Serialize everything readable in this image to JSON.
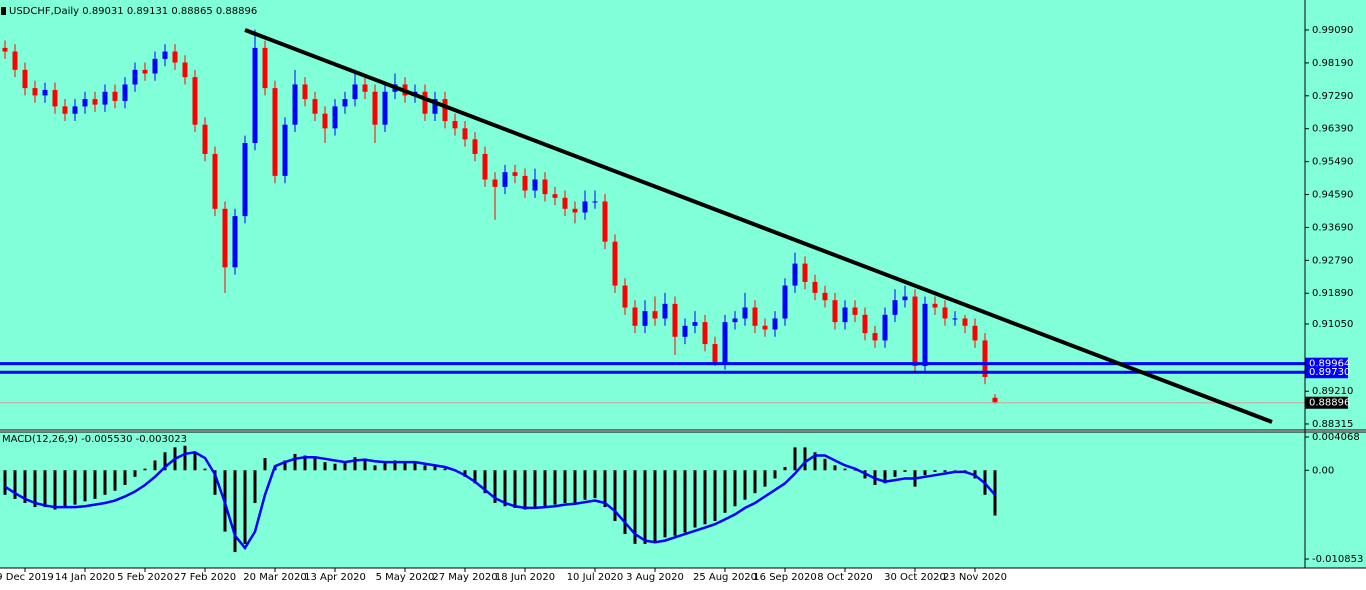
{
  "chart_data": [
    {
      "type": "candlestick",
      "title": "USDCHF,Daily  0.89031 0.89131 0.88865 0.88896",
      "background": "#80ffd8",
      "up_color": "#0000ff",
      "down_color": "#ff0000",
      "open": [
        0.986,
        0.985,
        0.98,
        0.975,
        0.973,
        0.9745,
        0.97,
        0.968,
        0.97,
        0.972,
        0.9705,
        0.974,
        0.9715,
        0.976,
        0.98,
        0.979,
        0.983,
        0.985,
        0.982,
        0.978,
        0.965,
        0.957,
        0.942,
        0.926,
        0.94,
        0.96,
        0.986,
        0.975,
        0.951,
        0.965,
        0.976,
        0.972,
        0.968,
        0.964,
        0.97,
        0.972,
        0.976,
        0.974,
        0.965,
        0.974,
        0.976,
        0.973,
        0.974,
        0.968,
        0.972,
        0.966,
        0.964,
        0.961,
        0.957,
        0.95,
        0.948,
        0.952,
        0.951,
        0.947,
        0.95,
        0.946,
        0.945,
        0.942,
        0.941,
        0.944,
        0.944,
        0.933,
        0.921,
        0.915,
        0.91,
        0.914,
        0.912,
        0.916,
        0.907,
        0.91,
        0.911,
        0.905,
        0.9,
        0.911,
        0.912,
        0.915,
        0.91,
        0.909,
        0.912,
        0.921,
        0.927,
        0.922,
        0.919,
        0.917,
        0.911,
        0.915,
        0.913,
        0.908,
        0.906,
        0.913,
        0.917,
        0.918,
        0.899,
        0.916,
        0.915,
        0.912,
        0.912,
        0.91,
        0.906,
        0.89031
      ],
      "high": [
        0.988,
        0.987,
        0.982,
        0.977,
        0.9765,
        0.9765,
        0.972,
        0.972,
        0.974,
        0.974,
        0.976,
        0.976,
        0.978,
        0.982,
        0.982,
        0.985,
        0.987,
        0.987,
        0.984,
        0.98,
        0.967,
        0.959,
        0.944,
        0.942,
        0.962,
        0.991,
        0.988,
        0.977,
        0.967,
        0.98,
        0.978,
        0.974,
        0.97,
        0.972,
        0.974,
        0.98,
        0.978,
        0.976,
        0.976,
        0.979,
        0.978,
        0.976,
        0.976,
        0.974,
        0.974,
        0.968,
        0.966,
        0.963,
        0.959,
        0.952,
        0.954,
        0.954,
        0.953,
        0.953,
        0.952,
        0.948,
        0.947,
        0.944,
        0.947,
        0.947,
        0.946,
        0.935,
        0.923,
        0.917,
        0.917,
        0.918,
        0.919,
        0.918,
        0.912,
        0.914,
        0.913,
        0.907,
        0.913,
        0.914,
        0.919,
        0.917,
        0.912,
        0.914,
        0.923,
        0.93,
        0.929,
        0.924,
        0.921,
        0.919,
        0.917,
        0.917,
        0.915,
        0.91,
        0.915,
        0.92,
        0.921,
        0.92,
        0.918,
        0.918,
        0.917,
        0.914,
        0.913,
        0.912,
        0.908,
        0.89131
      ],
      "low": [
        0.983,
        0.978,
        0.973,
        0.971,
        0.971,
        0.968,
        0.966,
        0.966,
        0.968,
        0.9685,
        0.9685,
        0.9695,
        0.9695,
        0.974,
        0.977,
        0.977,
        0.981,
        0.98,
        0.976,
        0.963,
        0.955,
        0.94,
        0.919,
        0.924,
        0.938,
        0.958,
        0.973,
        0.949,
        0.949,
        0.963,
        0.97,
        0.966,
        0.96,
        0.962,
        0.968,
        0.97,
        0.972,
        0.96,
        0.963,
        0.972,
        0.971,
        0.971,
        0.966,
        0.966,
        0.964,
        0.962,
        0.959,
        0.955,
        0.948,
        0.939,
        0.946,
        0.949,
        0.945,
        0.945,
        0.944,
        0.943,
        0.94,
        0.938,
        0.939,
        0.942,
        0.931,
        0.919,
        0.913,
        0.908,
        0.908,
        0.91,
        0.91,
        0.902,
        0.905,
        0.908,
        0.903,
        0.899,
        0.898,
        0.909,
        0.91,
        0.908,
        0.907,
        0.907,
        0.91,
        0.919,
        0.92,
        0.917,
        0.915,
        0.909,
        0.909,
        0.911,
        0.906,
        0.904,
        0.904,
        0.911,
        0.915,
        0.897,
        0.897,
        0.913,
        0.91,
        0.91,
        0.908,
        0.904,
        0.894,
        0.88865
      ],
      "close": [
        0.985,
        0.98,
        0.975,
        0.973,
        0.9745,
        0.97,
        0.968,
        0.97,
        0.972,
        0.9705,
        0.974,
        0.9715,
        0.976,
        0.98,
        0.979,
        0.983,
        0.985,
        0.982,
        0.978,
        0.965,
        0.957,
        0.942,
        0.926,
        0.94,
        0.96,
        0.986,
        0.975,
        0.951,
        0.965,
        0.976,
        0.972,
        0.968,
        0.964,
        0.97,
        0.972,
        0.976,
        0.974,
        0.965,
        0.974,
        0.976,
        0.973,
        0.974,
        0.968,
        0.972,
        0.966,
        0.964,
        0.961,
        0.957,
        0.95,
        0.948,
        0.952,
        0.951,
        0.947,
        0.95,
        0.946,
        0.945,
        0.942,
        0.941,
        0.944,
        0.944,
        0.933,
        0.921,
        0.915,
        0.91,
        0.914,
        0.912,
        0.916,
        0.907,
        0.91,
        0.911,
        0.905,
        0.9,
        0.911,
        0.912,
        0.915,
        0.91,
        0.909,
        0.912,
        0.921,
        0.927,
        0.922,
        0.919,
        0.917,
        0.911,
        0.915,
        0.913,
        0.908,
        0.906,
        0.913,
        0.917,
        0.918,
        0.899,
        0.916,
        0.915,
        0.912,
        0.912,
        0.91,
        0.906,
        0.896,
        0.88896
      ],
      "ylim": [
        0.8815,
        0.9991
      ],
      "yticks": [
        {
          "value": 0.9909,
          "label": "0.99090"
        },
        {
          "value": 0.9819,
          "label": "0.98190"
        },
        {
          "value": 0.9729,
          "label": "0.97290"
        },
        {
          "value": 0.9639,
          "label": "0.96390"
        },
        {
          "value": 0.9549,
          "label": "0.95490"
        },
        {
          "value": 0.9459,
          "label": "0.94590"
        },
        {
          "value": 0.9369,
          "label": "0.93690"
        },
        {
          "value": 0.9279,
          "label": "0.92790"
        },
        {
          "value": 0.9189,
          "label": "0.91890"
        },
        {
          "value": 0.9105,
          "label": "0.91050"
        },
        {
          "value": 0.8921,
          "label": "0.89210"
        },
        {
          "value": 0.88315,
          "label": "0.88315"
        }
      ],
      "xticks": [
        {
          "value": 2,
          "label": "9 Dec 2019"
        },
        {
          "value": 8,
          "label": "14 Jan 2020"
        },
        {
          "value": 14,
          "label": "5 Feb 2020"
        },
        {
          "value": 20,
          "label": "27 Feb 2020"
        },
        {
          "value": 27,
          "label": "20 Mar 2020"
        },
        {
          "value": 33,
          "label": "13 Apr 2020"
        },
        {
          "value": 40,
          "label": "5 May 2020"
        },
        {
          "value": 46,
          "label": "27 May 2020"
        },
        {
          "value": 52,
          "label": "18 Jun 2020"
        },
        {
          "value": 59,
          "label": "10 Jul 2020"
        },
        {
          "value": 65,
          "label": "3 Aug 2020"
        },
        {
          "value": 72,
          "label": "25 Aug 2020"
        },
        {
          "value": 78,
          "label": "16 Sep 2020"
        },
        {
          "value": 84,
          "label": "8 Oct 2020"
        },
        {
          "value": 91,
          "label": "30 Oct 2020"
        },
        {
          "value": 97,
          "label": "23 Nov 2020"
        }
      ],
      "trendline": {
        "x": [
          24,
          126.7
        ],
        "y": [
          0.9909,
          0.8837
        ],
        "color": "#000000"
      },
      "hlines": [
        {
          "value": 0.89964,
          "label": "0.89964"
        },
        {
          "value": 0.8973,
          "label": "0.89730"
        }
      ],
      "hline_color": "#0000ff"
    },
    {
      "type": "macd",
      "title": "MACD(12,26,9) -0.005530 -0.003023",
      "histogram": [
        -0.003,
        -0.0035,
        -0.004,
        -0.0045,
        -0.0045,
        -0.0048,
        -0.0046,
        -0.0042,
        -0.0038,
        -0.0035,
        -0.003,
        -0.0025,
        -0.0018,
        -0.0008,
        0.0002,
        0.0012,
        0.0022,
        0.0028,
        0.003,
        0.0022,
        0.0002,
        -0.003,
        -0.0075,
        -0.01,
        -0.009,
        -0.004,
        0.0015,
        0.0005,
        0.0012,
        0.002,
        0.0018,
        0.0015,
        0.001,
        0.0008,
        0.001,
        0.0016,
        0.0014,
        0.0006,
        0.001,
        0.0012,
        0.001,
        0.001,
        0.0006,
        0.0006,
        0.0002,
        0.0,
        -0.0008,
        -0.0016,
        -0.0028,
        -0.004,
        -0.0044,
        -0.0046,
        -0.0048,
        -0.0046,
        -0.0044,
        -0.0042,
        -0.004,
        -0.004,
        -0.0036,
        -0.0034,
        -0.0045,
        -0.0062,
        -0.0078,
        -0.009,
        -0.009,
        -0.0088,
        -0.0082,
        -0.008,
        -0.0076,
        -0.007,
        -0.0066,
        -0.0062,
        -0.0052,
        -0.0044,
        -0.0036,
        -0.0028,
        -0.002,
        -0.001,
        0.0004,
        0.0028,
        0.0028,
        0.0022,
        0.0014,
        0.0006,
        0.0002,
        0.0,
        -0.001,
        -0.0018,
        -0.0016,
        -0.0008,
        -0.0002,
        -0.002,
        -0.0006,
        -0.0002,
        -0.0002,
        0.0,
        -0.0002,
        -0.001,
        -0.003,
        -0.00553
      ],
      "signal": [
        -0.002,
        -0.0028,
        -0.0035,
        -0.004,
        -0.0043,
        -0.0045,
        -0.0045,
        -0.0045,
        -0.0044,
        -0.0042,
        -0.004,
        -0.0037,
        -0.0032,
        -0.0026,
        -0.0018,
        -0.0008,
        0.0004,
        0.0014,
        0.002,
        0.0022,
        0.0015,
        -0.0005,
        -0.004,
        -0.008,
        -0.0095,
        -0.0075,
        -0.003,
        0.0005,
        0.001,
        0.0014,
        0.0016,
        0.0016,
        0.0014,
        0.0012,
        0.001,
        0.0012,
        0.0013,
        0.0011,
        0.001,
        0.001,
        0.001,
        0.001,
        0.0008,
        0.0006,
        0.0004,
        0.0,
        -0.0006,
        -0.0014,
        -0.0024,
        -0.0034,
        -0.004,
        -0.0044,
        -0.0046,
        -0.0046,
        -0.0045,
        -0.0044,
        -0.0042,
        -0.0041,
        -0.0039,
        -0.0037,
        -0.004,
        -0.005,
        -0.0064,
        -0.0078,
        -0.0086,
        -0.0088,
        -0.0086,
        -0.0082,
        -0.0078,
        -0.0074,
        -0.007,
        -0.0066,
        -0.006,
        -0.0054,
        -0.0046,
        -0.004,
        -0.0032,
        -0.0024,
        -0.0016,
        -0.0004,
        0.001,
        0.0018,
        0.0018,
        0.0012,
        0.0006,
        0.0002,
        -0.0004,
        -0.001,
        -0.0014,
        -0.0012,
        -0.001,
        -0.001,
        -0.0008,
        -0.0006,
        -0.0004,
        -0.0002,
        -0.0002,
        -0.0006,
        -0.0016,
        -0.003023
      ],
      "histogram_color": "#000000",
      "signal_color": "#0000ff",
      "ylim": [
        -0.01195,
        0.00468
      ],
      "yticks": [
        0.004068,
        {
          "value": 0,
          "label": "0.00"
        },
        -0.010853
      ]
    }
  ]
}
